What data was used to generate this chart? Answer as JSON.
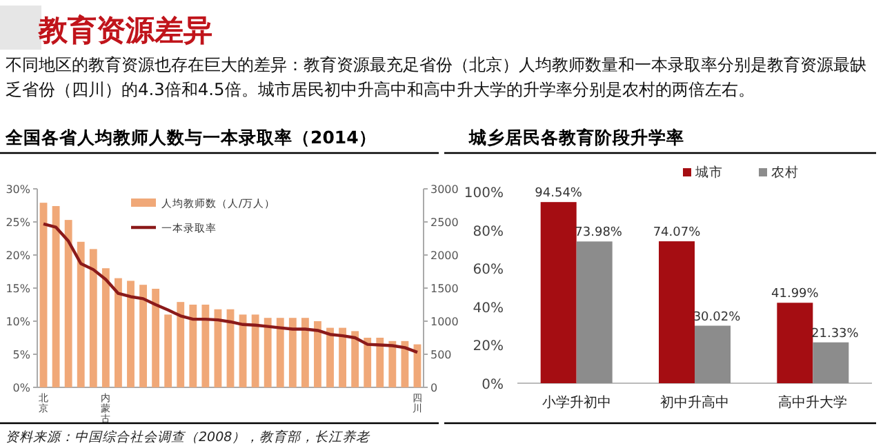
{
  "chart_data": [
    {
      "type": "bar",
      "title": "全国各省人均教师人数与一本录取率（2014）",
      "annotations": [
        "教育资源差异",
        "不同地区的教育资源也存在巨大的差异：教育资源最充足省份（北京）人均教师数量和一本录取率分别是教育资源最缺乏省份（四川）的4.3倍和4.5倍。城市居民初中升高中和高中升大学的升学率分别是农村的两倍左右。",
        "资料来源：中国综合社会调查（2008），教育部，长江养老"
      ],
      "categories": [
        "北京",
        null,
        null,
        null,
        null,
        "内蒙古",
        null,
        null,
        null,
        null,
        null,
        null,
        null,
        null,
        null,
        null,
        null,
        null,
        null,
        null,
        null,
        null,
        null,
        null,
        null,
        null,
        null,
        null,
        null,
        null,
        "四川"
      ],
      "series": [
        {
          "name": "人均教师数（人/万人）",
          "type": "bar",
          "axis": "y2",
          "color": "#f0a878",
          "values": [
            2790,
            2740,
            2530,
            2200,
            2090,
            1800,
            1650,
            1610,
            1550,
            1490,
            1100,
            1290,
            1250,
            1250,
            1180,
            1180,
            1100,
            1100,
            1050,
            1050,
            1050,
            1050,
            1000,
            900,
            900,
            850,
            750,
            750,
            700,
            700,
            650
          ]
        },
        {
          "name": "一本录取率",
          "type": "line",
          "color": "#8b1a1a",
          "values": [
            24.7,
            24.2,
            22.1,
            18.7,
            17.8,
            16.3,
            14.2,
            13.7,
            13.4,
            12.5,
            11.7,
            10.8,
            10.3,
            10.3,
            10.2,
            9.9,
            9.5,
            9.4,
            9.2,
            9.0,
            8.8,
            8.8,
            8.6,
            8.0,
            7.8,
            7.5,
            6.5,
            6.4,
            6.3,
            6.0,
            5.3
          ]
        }
      ],
      "ylim": [
        0,
        30
      ],
      "yticks": [
        {
          "value": 0,
          "label": "0%"
        },
        {
          "value": 5,
          "label": "5%"
        },
        {
          "value": 10,
          "label": "10%"
        },
        {
          "value": 15,
          "label": "15%"
        },
        {
          "value": 20,
          "label": "20%"
        },
        {
          "value": 25,
          "label": "25%"
        },
        {
          "value": 30,
          "label": "30%"
        }
      ],
      "y2lim": [
        0,
        3000
      ],
      "y2ticks": [
        0,
        500,
        1000,
        1500,
        2000,
        2500,
        3000
      ],
      "legend": "top",
      "marker": "none",
      "line_style": "solid"
    },
    {
      "type": "bar",
      "title": "城乡居民各教育阶段升学率",
      "categories": [
        "小学升初中",
        "初中升高中",
        "高中升大学"
      ],
      "series": [
        {
          "name": "城市",
          "color": "#a50d12",
          "values": [
            94.54,
            74.07,
            41.99
          ],
          "value_labels": [
            "94.54%",
            "74.07%",
            "41.99%"
          ]
        },
        {
          "name": "农村",
          "color": "#8c8c8c",
          "values": [
            73.98,
            30.02,
            21.33
          ],
          "value_labels": [
            "73.98%",
            "30.02%",
            "21.33%"
          ]
        }
      ],
      "ylim": [
        0,
        100
      ],
      "yticks": [
        {
          "value": 0,
          "label": "0%"
        },
        {
          "value": 20,
          "label": "20%"
        },
        {
          "value": 40,
          "label": "40%"
        },
        {
          "value": 60,
          "label": "60%"
        },
        {
          "value": 80,
          "label": "80%"
        },
        {
          "value": 100,
          "label": "100%"
        }
      ],
      "legend": "top right",
      "grid": false
    }
  ]
}
